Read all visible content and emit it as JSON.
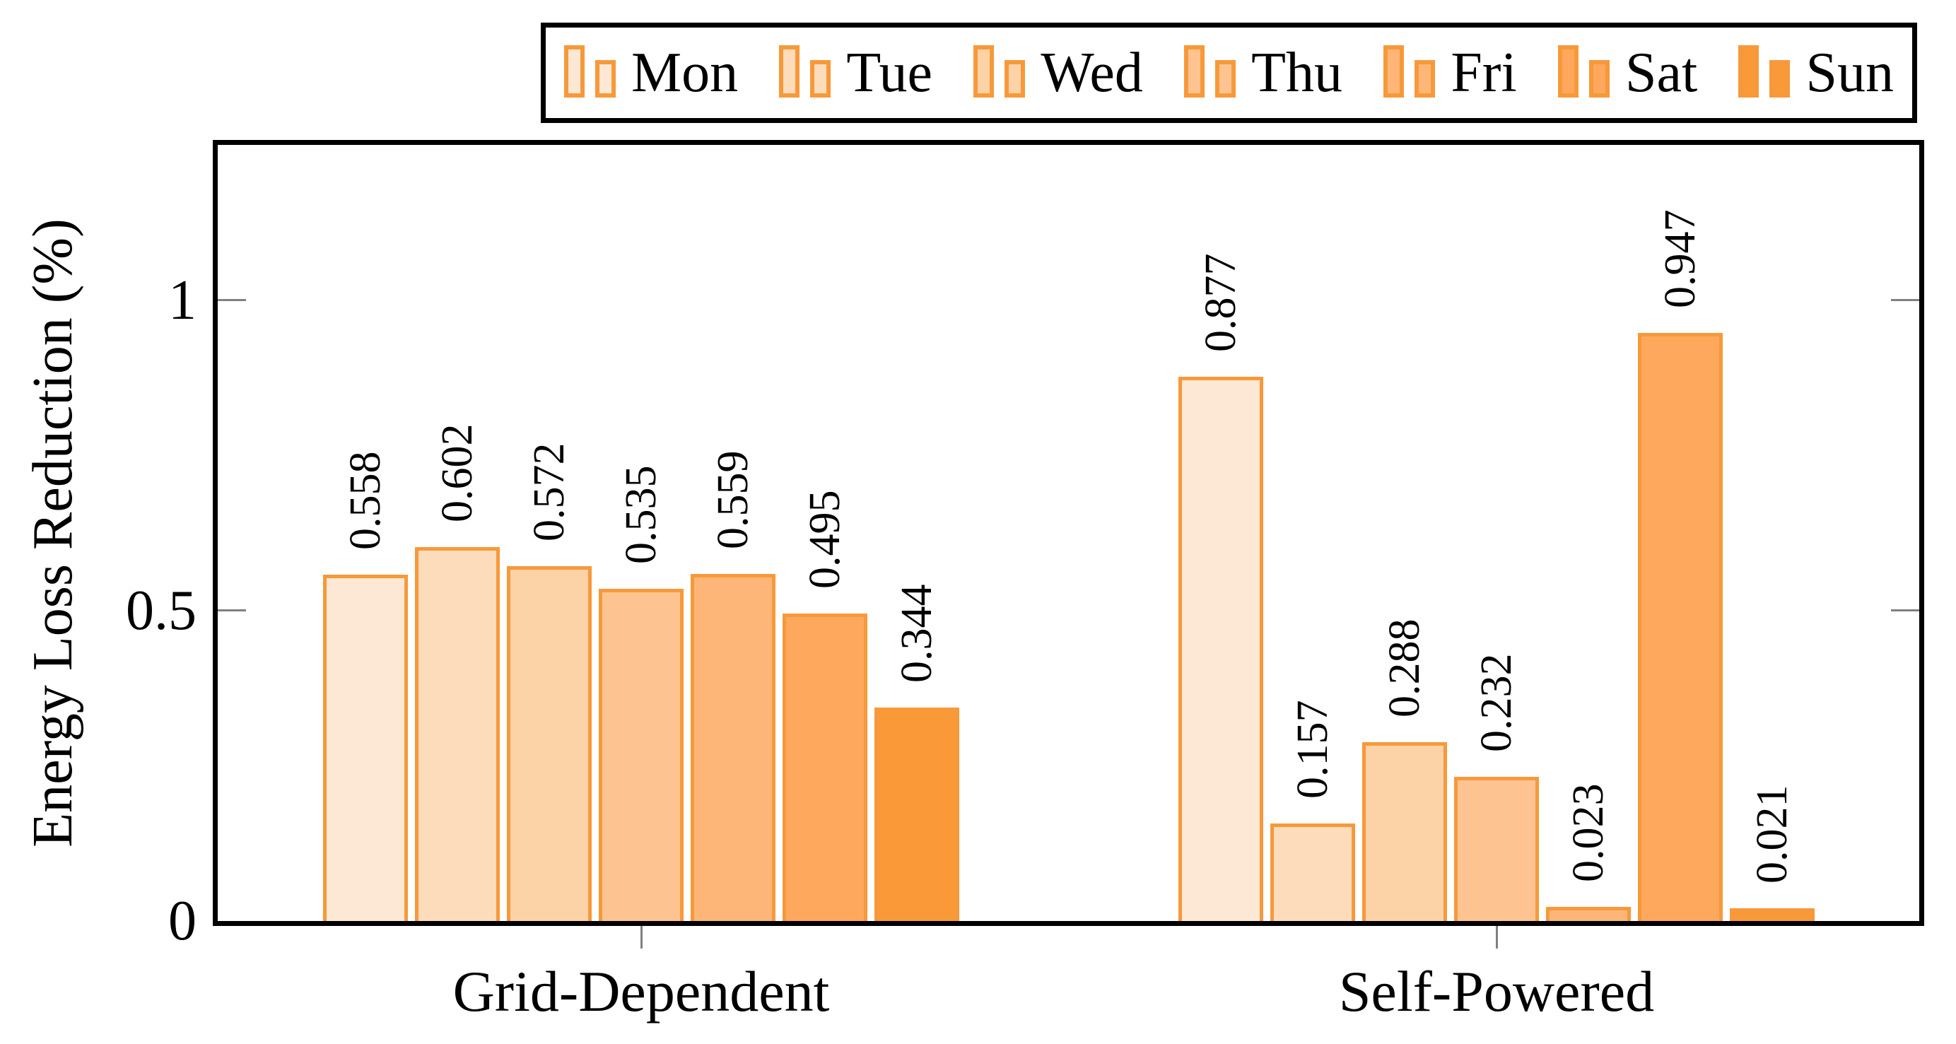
{
  "chart_data": {
    "type": "bar",
    "title": "",
    "ylabel": "Energy Loss Reduction (%)",
    "xlabel": "",
    "categories": [
      "Grid-Dependent",
      "Self-Powered"
    ],
    "series": [
      {
        "name": "Mon",
        "values": [
          0.558,
          0.877
        ],
        "fill": "#FCE8D4"
      },
      {
        "name": "Tue",
        "values": [
          0.602,
          0.157
        ],
        "fill": "#FDDCBB"
      },
      {
        "name": "Wed",
        "values": [
          0.572,
          0.288
        ],
        "fill": "#FCD2A7"
      },
      {
        "name": "Thu",
        "values": [
          0.535,
          0.232
        ],
        "fill": "#FDC491"
      },
      {
        "name": "Fri",
        "values": [
          0.559,
          0.023
        ],
        "fill": "#FDB678"
      },
      {
        "name": "Sat",
        "values": [
          0.495,
          0.947
        ],
        "fill": "#FDA85C"
      },
      {
        "name": "Sun",
        "values": [
          0.344,
          0.021
        ],
        "fill": "#FA9938"
      }
    ],
    "value_labels": {
      "Grid-Dependent": [
        "0.558",
        "0.602",
        "0.572",
        "0.535",
        "0.559",
        "0.495",
        "0.344"
      ],
      "Self-Powered": [
        "0.877",
        "0.157",
        "0.288",
        "0.232",
        "0.023",
        "0.947",
        "0.021"
      ]
    },
    "ylim": [
      0,
      1.25
    ],
    "yticks": [
      0,
      0.5,
      1
    ],
    "ytick_labels": [
      "0",
      "0.5",
      "1"
    ],
    "legend_position": "top",
    "grid": false,
    "colors": {
      "bar_border": "#F7993A",
      "axis": "#000000",
      "tick": "#808080",
      "background": "#FFFFFF",
      "text": "#000000"
    }
  }
}
